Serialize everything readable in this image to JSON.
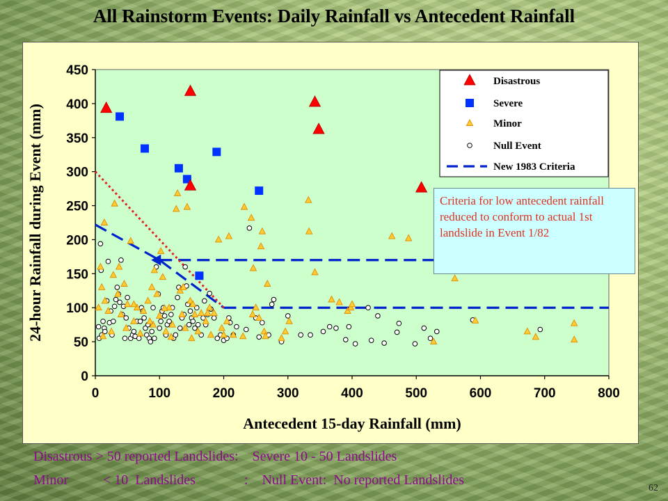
{
  "title": "All Rainstorm Events:  Daily Rainfall vs Antecedent Rainfall",
  "callout": "Criteria for low antecedent rainfall reduced to conform to actual 1st landslide in Event 1/82",
  "footnotes": {
    "line1": "Disastrous > 50 reported Landslides:    Severe 10 - 50 Landslides",
    "line2": "Minor          < 10  Landslides              :    Null Event:  No reported Landslides"
  },
  "page_number": "62",
  "colors": {
    "plot_bg": "#ccffcc",
    "disastrous": "#ff0000",
    "severe": "#0033ff",
    "minor_fill": "#ffcc33",
    "minor_edge": "#e08a00",
    "null_edge": "#000000",
    "criteria": "#0022cc",
    "dotted": "#dd2222"
  },
  "chart_data": {
    "type": "scatter",
    "xlabel": "Antecedent 15-day Rainfall (mm)",
    "ylabel": "24-hour Rainfall during Event (mm)",
    "xlim": [
      0,
      800
    ],
    "ylim": [
      0,
      450
    ],
    "x_ticks": [
      "0",
      "100",
      "200",
      "300",
      "400",
      "500",
      "600",
      "700",
      "800"
    ],
    "y_ticks": [
      "0",
      "50",
      "100",
      "150",
      "200",
      "250",
      "300",
      "350",
      "400",
      "450"
    ],
    "grid": false,
    "legend_position": "top-right",
    "legend": [
      "Disastrous",
      "Severe",
      "Minor",
      "Null Event",
      "New 1983 Criteria"
    ],
    "series": [
      {
        "name": "Disastrous",
        "marker": "triangle",
        "points": [
          [
            17,
            393
          ],
          [
            148,
            418
          ],
          [
            148,
            279
          ],
          [
            342,
            402
          ],
          [
            348,
            362
          ],
          [
            508,
            276
          ]
        ]
      },
      {
        "name": "Severe",
        "marker": "square",
        "points": [
          [
            38,
            381
          ],
          [
            77,
            334
          ],
          [
            130,
            305
          ],
          [
            143,
            289
          ],
          [
            189,
            329
          ],
          [
            255,
            272
          ],
          [
            162,
            147
          ]
        ]
      },
      {
        "name": "Minor",
        "marker": "small-triangle",
        "points": [
          [
            8,
            160
          ],
          [
            10,
            130
          ],
          [
            14,
            225
          ],
          [
            20,
            95
          ],
          [
            28,
            148
          ],
          [
            30,
            253
          ],
          [
            35,
            120
          ],
          [
            40,
            90
          ],
          [
            45,
            135
          ],
          [
            50,
            105
          ],
          [
            55,
            198
          ],
          [
            60,
            80
          ],
          [
            65,
            100
          ],
          [
            75,
            95
          ],
          [
            82,
            110
          ],
          [
            90,
            75
          ],
          [
            92,
            155
          ],
          [
            96,
            120
          ],
          [
            100,
            88
          ],
          [
            102,
            183
          ],
          [
            105,
            145
          ],
          [
            110,
            65
          ],
          [
            115,
            100
          ],
          [
            120,
            75
          ],
          [
            126,
            245
          ],
          [
            128,
            268
          ],
          [
            132,
            125
          ],
          [
            135,
            90
          ],
          [
            140,
            70
          ],
          [
            143,
            248
          ],
          [
            148,
            110
          ],
          [
            155,
            90
          ],
          [
            160,
            65
          ],
          [
            165,
            92
          ],
          [
            172,
            80
          ],
          [
            178,
            100
          ],
          [
            185,
            92
          ],
          [
            192,
            200
          ],
          [
            197,
            70
          ],
          [
            205,
            80
          ],
          [
            208,
            205
          ],
          [
            215,
            60
          ],
          [
            232,
            248
          ],
          [
            243,
            232
          ],
          [
            246,
            158
          ],
          [
            250,
            100
          ],
          [
            255,
            85
          ],
          [
            258,
            190
          ],
          [
            260,
            212
          ],
          [
            263,
            65
          ],
          [
            268,
            135
          ],
          [
            296,
            65
          ],
          [
            302,
            80
          ],
          [
            332,
            258
          ],
          [
            333,
            212
          ],
          [
            342,
            152
          ],
          [
            368,
            112
          ],
          [
            380,
            108
          ],
          [
            393,
            95
          ],
          [
            398,
            100
          ],
          [
            400,
            105
          ],
          [
            462,
            205
          ],
          [
            488,
            202
          ],
          [
            527,
            50
          ],
          [
            560,
            143
          ],
          [
            592,
            81
          ],
          [
            673,
            65
          ],
          [
            686,
            57
          ],
          [
            746,
            77
          ],
          [
            746,
            53
          ],
          [
            5,
            100
          ],
          [
            12,
            58
          ],
          [
            25,
            65
          ],
          [
            48,
            70
          ],
          [
            70,
            62
          ],
          [
            88,
            130
          ],
          [
            118,
            57
          ],
          [
            150,
            55
          ],
          [
            180,
            60
          ],
          [
            230,
            58
          ],
          [
            245,
            90
          ],
          [
            265,
            58
          ],
          [
            290,
            55
          ],
          [
            15,
            110
          ],
          [
            37,
            160
          ],
          [
            60,
            105
          ],
          [
            85,
            80
          ],
          [
            108,
            99
          ],
          [
            137,
            130
          ],
          [
            152,
            105
          ],
          [
            175,
            92
          ],
          [
            200,
            60
          ]
        ]
      },
      {
        "name": "Null Event",
        "marker": "circle",
        "points": [
          [
            5,
            72
          ],
          [
            6,
            55
          ],
          [
            8,
            194
          ],
          [
            9,
            155
          ],
          [
            10,
            60
          ],
          [
            12,
            80
          ],
          [
            14,
            70
          ],
          [
            15,
            65
          ],
          [
            18,
            110
          ],
          [
            20,
            168
          ],
          [
            22,
            78
          ],
          [
            24,
            95
          ],
          [
            26,
            60
          ],
          [
            28,
            80
          ],
          [
            30,
            102
          ],
          [
            32,
            112
          ],
          [
            34,
            130
          ],
          [
            36,
            120
          ],
          [
            38,
            108
          ],
          [
            40,
            170
          ],
          [
            42,
            90
          ],
          [
            44,
            102
          ],
          [
            46,
            55
          ],
          [
            48,
            85
          ],
          [
            50,
            115
          ],
          [
            52,
            70
          ],
          [
            55,
            55
          ],
          [
            58,
            60
          ],
          [
            60,
            65
          ],
          [
            62,
            58
          ],
          [
            65,
            80
          ],
          [
            68,
            55
          ],
          [
            70,
            80
          ],
          [
            72,
            100
          ],
          [
            74,
            95
          ],
          [
            76,
            85
          ],
          [
            78,
            70
          ],
          [
            80,
            60
          ],
          [
            82,
            75
          ],
          [
            84,
            55
          ],
          [
            86,
            50
          ],
          [
            88,
            65
          ],
          [
            90,
            100
          ],
          [
            92,
            55
          ],
          [
            95,
            160
          ],
          [
            98,
            120
          ],
          [
            100,
            70
          ],
          [
            102,
            80
          ],
          [
            104,
            95
          ],
          [
            106,
            100
          ],
          [
            108,
            88
          ],
          [
            110,
            60
          ],
          [
            112,
            75
          ],
          [
            115,
            80
          ],
          [
            118,
            90
          ],
          [
            120,
            100
          ],
          [
            122,
            55
          ],
          [
            125,
            60
          ],
          [
            128,
            115
          ],
          [
            130,
            130
          ],
          [
            132,
            70
          ],
          [
            135,
            85
          ],
          [
            138,
            90
          ],
          [
            140,
            160
          ],
          [
            142,
            132
          ],
          [
            144,
            105
          ],
          [
            146,
            75
          ],
          [
            148,
            95
          ],
          [
            150,
            85
          ],
          [
            152,
            80
          ],
          [
            155,
            70
          ],
          [
            158,
            100
          ],
          [
            160,
            75
          ],
          [
            165,
            60
          ],
          [
            168,
            85
          ],
          [
            170,
            110
          ],
          [
            172,
            75
          ],
          [
            175,
            90
          ],
          [
            178,
            121
          ],
          [
            180,
            98
          ],
          [
            185,
            85
          ],
          [
            190,
            55
          ],
          [
            195,
            60
          ],
          [
            200,
            52
          ],
          [
            205,
            55
          ],
          [
            208,
            85
          ],
          [
            210,
            78
          ],
          [
            215,
            60
          ],
          [
            220,
            72
          ],
          [
            235,
            68
          ],
          [
            240,
            217
          ],
          [
            250,
            85
          ],
          [
            255,
            57
          ],
          [
            260,
            78
          ],
          [
            270,
            60
          ],
          [
            275,
            105
          ],
          [
            278,
            112
          ],
          [
            290,
            50
          ],
          [
            300,
            88
          ],
          [
            320,
            60
          ],
          [
            335,
            60
          ],
          [
            355,
            65
          ],
          [
            365,
            72
          ],
          [
            375,
            70
          ],
          [
            390,
            53
          ],
          [
            395,
            72
          ],
          [
            405,
            47
          ],
          [
            425,
            100
          ],
          [
            430,
            52
          ],
          [
            440,
            88
          ],
          [
            450,
            48
          ],
          [
            470,
            64
          ],
          [
            473,
            77
          ],
          [
            498,
            47
          ],
          [
            512,
            70
          ],
          [
            522,
            55
          ],
          [
            532,
            65
          ],
          [
            588,
            82
          ],
          [
            693,
            68
          ]
        ]
      }
    ],
    "lines": [
      {
        "name": "New 1983 Criteria",
        "style": "dashed",
        "segments": [
          [
            [
              0,
              222
            ],
            [
              100,
              170
            ],
            [
              200,
              100
            ]
          ],
          [
            [
              200,
              100
            ],
            [
              800,
              100
            ]
          ],
          [
            [
              100,
              170
            ],
            [
              800,
              170
            ]
          ]
        ]
      },
      {
        "name": "",
        "style": "dotted",
        "color": "red",
        "segments": [
          [
            [
              0,
              300
            ],
            [
              200,
              100
            ]
          ]
        ]
      }
    ]
  }
}
